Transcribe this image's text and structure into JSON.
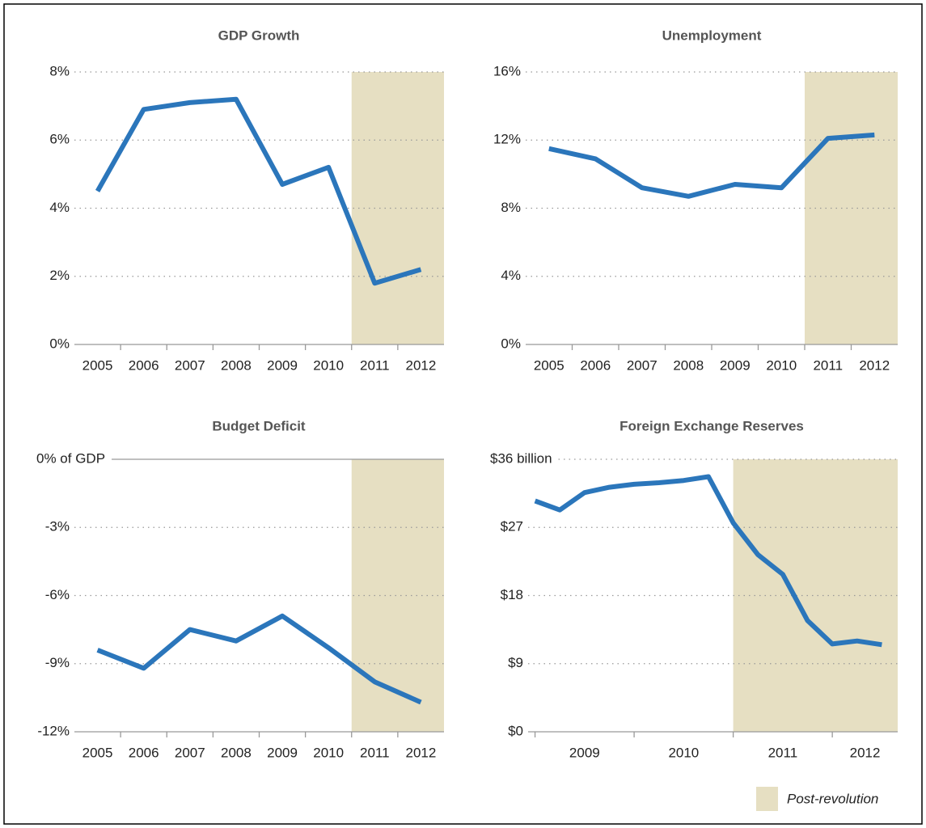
{
  "chart_data": [
    {
      "type": "line",
      "title": "GDP Growth",
      "categories": [
        "2005",
        "2006",
        "2007",
        "2008",
        "2009",
        "2010",
        "2011",
        "2012"
      ],
      "values": [
        4.5,
        6.9,
        7.1,
        7.2,
        4.7,
        5.2,
        1.8,
        2.2
      ],
      "color": "#2b76bb",
      "ylim": [
        0,
        8
      ],
      "yticks": [
        {
          "value": 0,
          "label": "0%"
        },
        {
          "value": 2,
          "label": "2%"
        },
        {
          "value": 4,
          "label": "4%"
        },
        {
          "value": 6,
          "label": "6%"
        },
        {
          "value": 8,
          "label": "8%"
        }
      ],
      "grid": true,
      "shade_from": "2011"
    },
    {
      "type": "line",
      "title": "Unemployment",
      "categories": [
        "2005",
        "2006",
        "2007",
        "2008",
        "2009",
        "2010",
        "2011",
        "2012"
      ],
      "values": [
        11.5,
        10.9,
        9.2,
        8.7,
        9.4,
        9.2,
        12.1,
        12.3
      ],
      "color": "#2b76bb",
      "ylim": [
        0,
        16
      ],
      "yticks": [
        {
          "value": 0,
          "label": "0%"
        },
        {
          "value": 4,
          "label": "4%"
        },
        {
          "value": 8,
          "label": "8%"
        },
        {
          "value": 12,
          "label": "12%"
        },
        {
          "value": 16,
          "label": "16%"
        }
      ],
      "grid": true,
      "shade_from": "2011"
    },
    {
      "type": "line",
      "title": "Budget Deficit",
      "categories": [
        "2005",
        "2006",
        "2007",
        "2008",
        "2009",
        "2010",
        "2011",
        "2012"
      ],
      "values": [
        -8.4,
        -9.2,
        -7.5,
        -8.0,
        -6.9,
        -8.3,
        -9.8,
        -10.7
      ],
      "color": "#2b76bb",
      "ylim": [
        -12,
        0
      ],
      "yticks": [
        {
          "value": -12,
          "label": "-12%"
        },
        {
          "value": -9,
          "label": "-9%"
        },
        {
          "value": -6,
          "label": "-6%"
        },
        {
          "value": -3,
          "label": "-3%"
        },
        {
          "value": 0,
          "label": "0% of GDP"
        }
      ],
      "grid": true,
      "shade_from": "2011"
    },
    {
      "type": "line",
      "title": "Foreign Exchange Reserves",
      "x": [
        2009.0,
        2009.25,
        2009.5,
        2009.75,
        2010.0,
        2010.25,
        2010.5,
        2010.75,
        2011.0,
        2011.25,
        2011.5,
        2011.75,
        2012.0,
        2012.25,
        2012.5
      ],
      "values": [
        30.5,
        29.3,
        31.6,
        32.3,
        32.7,
        32.9,
        33.2,
        33.7,
        27.6,
        23.4,
        20.8,
        14.7,
        11.6,
        12.0,
        11.5
      ],
      "color": "#2b76bb",
      "xlim": [
        2008.93,
        2012.66
      ],
      "xticks": [
        {
          "value": 2009,
          "label": "2009"
        },
        {
          "value": 2010,
          "label": "2010"
        },
        {
          "value": 2011,
          "label": "2011"
        },
        {
          "value": 2012,
          "label": "2012"
        }
      ],
      "ylim": [
        0,
        36
      ],
      "yticks": [
        {
          "value": 0,
          "label": "$0"
        },
        {
          "value": 9,
          "label": "$9"
        },
        {
          "value": 18,
          "label": "$18"
        },
        {
          "value": 27,
          "label": "$27"
        },
        {
          "value": 36,
          "label": "$36 billion"
        }
      ],
      "grid": true,
      "shade_from": 2011
    }
  ],
  "legend": {
    "label": "Post-revolution",
    "color": "#e6dfc2"
  }
}
